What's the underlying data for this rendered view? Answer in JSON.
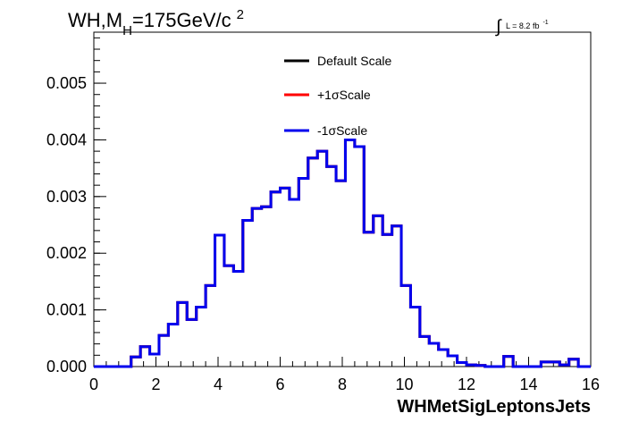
{
  "title": {
    "prefix": "WH,M",
    "subscript": "H",
    "value": "=175GeV/c",
    "superscript": "2"
  },
  "luminosity": {
    "integral_symbol": "∫",
    "text": "L = 8.2 fb",
    "superscript": "-1"
  },
  "colors": {
    "default": "#000000",
    "plus": "#ff0000",
    "minus": "#0000ee",
    "axis": "#000000",
    "background": "#ffffff"
  },
  "chart_data": {
    "type": "line",
    "style": "step-histogram",
    "xlabel": "WHMetSigLeptonsJets",
    "ylabel": "",
    "xlim": [
      0,
      16
    ],
    "ylim": [
      0,
      0.0059
    ],
    "xticks": [
      0,
      2,
      4,
      6,
      8,
      10,
      12,
      14,
      16
    ],
    "xtick_labels": [
      "0",
      "2",
      "4",
      "6",
      "8",
      "10",
      "12",
      "14",
      "16"
    ],
    "yticks": [
      0,
      0.001,
      0.002,
      0.003,
      0.004,
      0.005
    ],
    "ytick_labels": [
      "0.000",
      "0.001",
      "0.002",
      "0.003",
      "0.004",
      "0.005"
    ],
    "grid": false,
    "legend_position": "top-center",
    "bin_width": 0.3,
    "bin_edges_start": 0,
    "series": [
      {
        "name": "Default Scale",
        "color": "#000000",
        "values": [
          0,
          0,
          0,
          0,
          0.00017,
          0.00035,
          0.00022,
          0.00055,
          0.00075,
          0.00113,
          0.00083,
          0.00105,
          0.00143,
          0.00232,
          0.00178,
          0.00168,
          0.00258,
          0.00279,
          0.00282,
          0.00308,
          0.00315,
          0.00295,
          0.00332,
          0.00368,
          0.0038,
          0.00353,
          0.00328,
          0.004,
          0.00388,
          0.00237,
          0.00266,
          0.00233,
          0.00248,
          0.00143,
          0.00105,
          0.00053,
          0.00041,
          0.0003,
          0.00019,
          7e-05,
          3e-05,
          2e-05,
          0,
          0,
          0.00018,
          0,
          0,
          0,
          8e-05,
          8e-05,
          3e-05,
          0.00013,
          0,
          0
        ]
      },
      {
        "name": "+1σScale",
        "color": "#ff0000",
        "values": [
          0,
          0,
          0,
          0,
          0.00017,
          0.00035,
          0.00022,
          0.00055,
          0.00075,
          0.00113,
          0.00083,
          0.00105,
          0.00143,
          0.00232,
          0.00178,
          0.00168,
          0.00258,
          0.00279,
          0.00282,
          0.00308,
          0.00315,
          0.00295,
          0.00332,
          0.00368,
          0.0038,
          0.00353,
          0.00328,
          0.004,
          0.00388,
          0.00237,
          0.00266,
          0.00233,
          0.00248,
          0.00143,
          0.00105,
          0.00053,
          0.00041,
          0.0003,
          0.00019,
          7e-05,
          3e-05,
          2e-05,
          0,
          0,
          0.00018,
          0,
          0,
          0,
          8e-05,
          8e-05,
          3e-05,
          0.00013,
          0,
          0
        ]
      },
      {
        "name": "-1σScale",
        "color": "#0000ee",
        "values": [
          0,
          0,
          0,
          0,
          0.00017,
          0.00035,
          0.00022,
          0.00055,
          0.00075,
          0.00113,
          0.00083,
          0.00105,
          0.00143,
          0.00232,
          0.00178,
          0.00168,
          0.00258,
          0.00279,
          0.00282,
          0.00308,
          0.00315,
          0.00295,
          0.00332,
          0.00368,
          0.0038,
          0.00353,
          0.00328,
          0.004,
          0.00388,
          0.00237,
          0.00266,
          0.00233,
          0.00248,
          0.00143,
          0.00105,
          0.00053,
          0.00041,
          0.0003,
          0.00019,
          7e-05,
          3e-05,
          2e-05,
          0,
          0,
          0.00018,
          0,
          0,
          0,
          8e-05,
          8e-05,
          3e-05,
          0.00013,
          0,
          0
        ]
      }
    ]
  }
}
